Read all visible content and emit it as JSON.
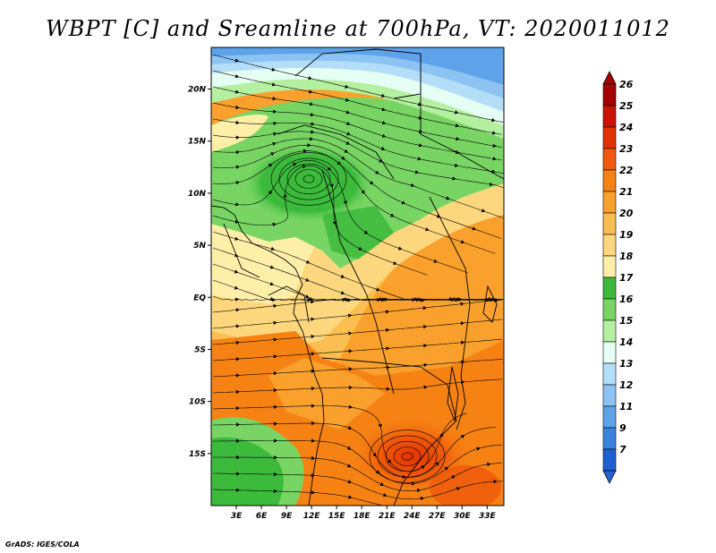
{
  "title": "WBPT [C] and Sreamline at 700hPa, VT: 2020011012",
  "footer": "GrADS: IGES/COLA",
  "map": {
    "lon_range": [
      0,
      35
    ],
    "lat_range": [
      -20,
      24
    ],
    "lat_ticks": [
      {
        "value": 20,
        "label": "20N"
      },
      {
        "value": 15,
        "label": "15N"
      },
      {
        "value": 10,
        "label": "10N"
      },
      {
        "value": 5,
        "label": "5N"
      },
      {
        "value": 0,
        "label": "EQ"
      },
      {
        "value": -5,
        "label": "5S"
      },
      {
        "value": -10,
        "label": "10S"
      },
      {
        "value": -15,
        "label": "15S"
      }
    ],
    "lon_ticks": [
      {
        "value": 3,
        "label": "3E"
      },
      {
        "value": 6,
        "label": "6E"
      },
      {
        "value": 9,
        "label": "9E"
      },
      {
        "value": 12,
        "label": "12E"
      },
      {
        "value": 15,
        "label": "15E"
      },
      {
        "value": 18,
        "label": "18E"
      },
      {
        "value": 21,
        "label": "21E"
      },
      {
        "value": 24,
        "label": "24E"
      },
      {
        "value": 27,
        "label": "27E"
      },
      {
        "value": 30,
        "label": "30E"
      },
      {
        "value": 33,
        "label": "33E"
      }
    ]
  },
  "colorbar": {
    "levels": [
      {
        "label": "26",
        "color": "#a50000"
      },
      {
        "label": "25",
        "color": "#c81400"
      },
      {
        "label": "24",
        "color": "#e23200"
      },
      {
        "label": "23",
        "color": "#f05a0a"
      },
      {
        "label": "22",
        "color": "#f68214"
      },
      {
        "label": "21",
        "color": "#f9a02d"
      },
      {
        "label": "20",
        "color": "#fbbe50"
      },
      {
        "label": "19",
        "color": "#fdd77d"
      },
      {
        "label": "18",
        "color": "#feefa8"
      },
      {
        "label": "17",
        "color": "#3cba3c"
      },
      {
        "label": "16",
        "color": "#78d564"
      },
      {
        "label": "15",
        "color": "#b4f0a0"
      },
      {
        "label": "14",
        "color": "#e6fff5"
      },
      {
        "label": "13",
        "color": "#b4def8"
      },
      {
        "label": "12",
        "color": "#8cc3f2"
      },
      {
        "label": "11",
        "color": "#5ea3ea"
      },
      {
        "label": "9",
        "color": "#3c82e1"
      },
      {
        "label": "7",
        "color": "#1e5fd2"
      }
    ],
    "below_color": "#2660d2"
  }
}
